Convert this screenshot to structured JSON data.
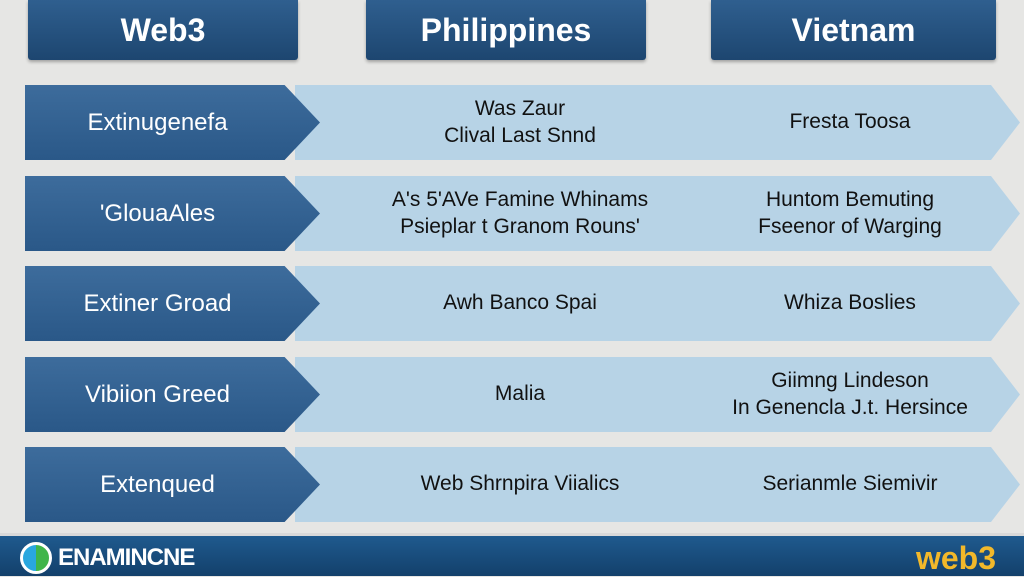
{
  "headers": [
    "Web3",
    "Philippines",
    "Vietnam"
  ],
  "rows": [
    {
      "label": "Extinugenefa",
      "philippines": "Was Zaur\nClival Last Snnd",
      "vietnam": "Fresta Toosa"
    },
    {
      "label": "'GlouaAles",
      "philippines": "A's 5'AVe Famine Whinams\nPsieplar t Granom Rouns'",
      "vietnam": "Huntom Bemuting\nFseenor of Warging"
    },
    {
      "label": "Extiner Groad",
      "philippines": "Awh Banco Spai",
      "vietnam": "Whiza Boslies"
    },
    {
      "label": "Vibiion Greed",
      "philippines": "Malia",
      "vietnam": "Giimng Lindeson\nIn Genencla J.t. Hersince"
    },
    {
      "label": "Extenqued",
      "philippines": "Web Shrnpira Viialics",
      "vietnam": "Serianmle Siemivir"
    }
  ],
  "footer": {
    "brand": "ENAMINCNE",
    "logo_text": "web3"
  }
}
